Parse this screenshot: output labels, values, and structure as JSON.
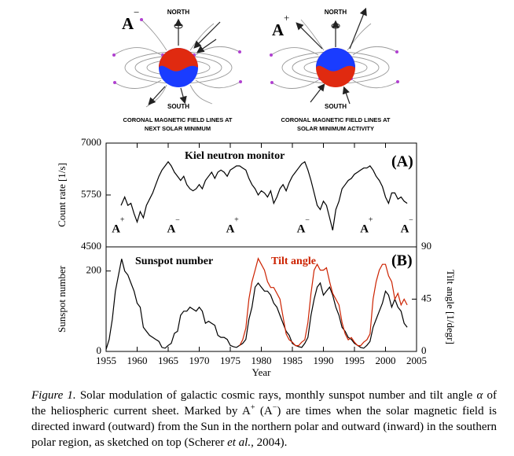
{
  "diagrams": [
    {
      "polarity": "A",
      "sign": "−",
      "north": "NORTH",
      "south": "SOUTH",
      "caption": [
        "CORONAL MAGNETIC FIELD LINES AT",
        "NEXT SOLAR MINIMUM"
      ]
    },
    {
      "polarity": "A",
      "sign": "+",
      "north": "NORTH",
      "south": "SOUTH",
      "caption": [
        "CORONAL MAGNETIC FIELD LINES AT",
        "SOLAR MINIMUM ACTIVITY"
      ]
    }
  ],
  "chart_data": [
    {
      "type": "line",
      "annotation": "Kiel neutron monitor",
      "panel_label": "(A)",
      "ylabel": "Count rate [1/s]",
      "xlim": [
        1955,
        2005
      ],
      "ylim": [
        4500,
        7000
      ],
      "yticks": [
        4500,
        5750,
        7000
      ],
      "series": [
        {
          "name": "Kiel neutron monitor",
          "color": "#000000",
          "x": [
            1957.4,
            1958,
            1958.5,
            1959,
            1959.5,
            1960,
            1960.5,
            1961,
            1961.5,
            1962,
            1962.5,
            1963,
            1963.5,
            1964,
            1964.5,
            1965,
            1965.5,
            1966,
            1966.5,
            1967,
            1967.5,
            1968,
            1968.5,
            1969,
            1969.5,
            1970,
            1970.5,
            1971,
            1971.5,
            1972,
            1972.5,
            1973,
            1973.5,
            1974,
            1974.5,
            1975,
            1975.5,
            1976,
            1976.5,
            1977,
            1977.5,
            1978,
            1978.5,
            1979,
            1979.5,
            1980,
            1980.5,
            1981,
            1981.5,
            1982,
            1982.5,
            1983,
            1983.5,
            1984,
            1984.5,
            1985,
            1985.5,
            1986,
            1986.5,
            1987,
            1987.5,
            1988,
            1988.5,
            1989,
            1989.5,
            1990,
            1990.5,
            1991,
            1991.5,
            1992,
            1992.5,
            1993,
            1993.5,
            1994,
            1994.5,
            1995,
            1995.5,
            1996,
            1996.5,
            1997,
            1997.5,
            1998,
            1998.5,
            1999,
            1999.5,
            2000,
            2000.5,
            2001,
            2001.5,
            2002,
            2002.5,
            2003,
            2003.5
          ],
          "values": [
            5500,
            5700,
            5500,
            5550,
            5300,
            5100,
            5350,
            5200,
            5500,
            5650,
            5800,
            6000,
            6200,
            6350,
            6450,
            6550,
            6450,
            6300,
            6200,
            6100,
            6200,
            6000,
            5900,
            5850,
            5900,
            6000,
            5900,
            6100,
            6200,
            6300,
            6150,
            6300,
            6350,
            6300,
            6200,
            6350,
            6400,
            6450,
            6450,
            6400,
            6350,
            6150,
            6000,
            5900,
            5750,
            5850,
            5800,
            5700,
            5850,
            5550,
            5700,
            5900,
            6000,
            5850,
            6050,
            6200,
            6300,
            6400,
            6500,
            6550,
            6350,
            6100,
            5800,
            5500,
            5400,
            5600,
            5500,
            5200,
            4900,
            5400,
            5600,
            5900,
            6000,
            6100,
            6150,
            6250,
            6300,
            6350,
            6400,
            6400,
            6450,
            6350,
            6200,
            6100,
            5950,
            5700,
            5550,
            5800,
            5800,
            5650,
            5700,
            5600,
            5550
          ]
        }
      ],
      "polarity_marks": [
        {
          "label": "A",
          "sign": "+",
          "x": 1956.6
        },
        {
          "label": "A",
          "sign": "−",
          "x": 1965.5
        },
        {
          "label": "A",
          "sign": "+",
          "x": 1975
        },
        {
          "label": "A",
          "sign": "−",
          "x": 1986.4
        },
        {
          "label": "A",
          "sign": "+",
          "x": 1996.6
        },
        {
          "label": "A",
          "sign": "−",
          "x": 2003.1
        }
      ]
    },
    {
      "type": "line",
      "panel_label": "(B)",
      "ylabel": "Sunspot number",
      "y2label": "Tilt angle [1/degr]",
      "xlabel": "Year",
      "xlim": [
        1955,
        2005
      ],
      "xticks": [
        1955,
        1960,
        1965,
        1970,
        1975,
        1980,
        1985,
        1990,
        1995,
        2000,
        2005
      ],
      "ylim": [
        0,
        260
      ],
      "yticks": [
        0,
        200
      ],
      "y2lim": [
        0,
        90
      ],
      "y2ticks": [
        0,
        45,
        90
      ],
      "series": [
        {
          "name": "Sunspot number",
          "color": "#000000",
          "x": [
            1955,
            1955.5,
            1956,
            1956.5,
            1957,
            1957.5,
            1958,
            1958.5,
            1959,
            1959.5,
            1960,
            1960.5,
            1961,
            1961.5,
            1962,
            1962.5,
            1963,
            1963.5,
            1964,
            1964.5,
            1965,
            1965.5,
            1966,
            1966.5,
            1967,
            1967.5,
            1968,
            1968.5,
            1969,
            1969.5,
            1970,
            1970.5,
            1971,
            1971.5,
            1972,
            1972.5,
            1973,
            1973.5,
            1974,
            1974.5,
            1975,
            1975.5,
            1976,
            1976.5,
            1977,
            1977.5,
            1978,
            1978.5,
            1979,
            1979.5,
            1980,
            1980.5,
            1981,
            1981.5,
            1982,
            1982.5,
            1983,
            1983.5,
            1984,
            1984.5,
            1985,
            1985.5,
            1986,
            1986.5,
            1987,
            1987.5,
            1988,
            1988.5,
            1989,
            1989.5,
            1990,
            1990.5,
            1991,
            1991.5,
            1992,
            1992.5,
            1993,
            1993.5,
            1994,
            1994.5,
            1995,
            1995.5,
            1996,
            1996.5,
            1997,
            1997.5,
            1998,
            1998.5,
            1999,
            1999.5,
            2000,
            2000.5,
            2001,
            2001.5,
            2002,
            2002.5,
            2003,
            2003.5
          ],
          "values": [
            5,
            30,
            80,
            150,
            190,
            230,
            200,
            190,
            170,
            150,
            120,
            110,
            60,
            50,
            40,
            35,
            30,
            25,
            10,
            8,
            15,
            20,
            45,
            50,
            90,
            100,
            100,
            110,
            105,
            100,
            110,
            100,
            70,
            75,
            70,
            65,
            40,
            35,
            35,
            30,
            15,
            12,
            10,
            15,
            20,
            30,
            80,
            110,
            160,
            170,
            160,
            150,
            150,
            140,
            120,
            110,
            90,
            70,
            50,
            40,
            20,
            15,
            12,
            10,
            20,
            35,
            90,
            130,
            160,
            170,
            140,
            150,
            160,
            140,
            110,
            90,
            60,
            50,
            35,
            30,
            20,
            15,
            10,
            8,
            15,
            25,
            60,
            80,
            100,
            120,
            150,
            140,
            110,
            130,
            110,
            100,
            70,
            60
          ]
        },
        {
          "name": "Tilt angle",
          "color": "#cc2200",
          "axis": "y2",
          "x": [
            1976.5,
            1977,
            1977.5,
            1978,
            1978.5,
            1979,
            1979.5,
            1980,
            1980.5,
            1981,
            1981.5,
            1982,
            1982.5,
            1983,
            1983.5,
            1984,
            1984.5,
            1985,
            1985.5,
            1986,
            1986.5,
            1987,
            1987.5,
            1988,
            1988.5,
            1989,
            1989.5,
            1990,
            1990.5,
            1991,
            1991.5,
            1992,
            1992.5,
            1993,
            1993.5,
            1994,
            1994.5,
            1995,
            1995.5,
            1996,
            1996.5,
            1997,
            1997.5,
            1998,
            1998.5,
            1999,
            1999.5,
            2000,
            2000.5,
            2001,
            2001.5,
            2002,
            2002.5,
            2003,
            2003.5
          ],
          "values": [
            5,
            10,
            20,
            45,
            60,
            70,
            80,
            75,
            70,
            60,
            55,
            55,
            50,
            45,
            30,
            15,
            10,
            8,
            5,
            5,
            8,
            10,
            25,
            50,
            70,
            75,
            70,
            70,
            72,
            60,
            50,
            45,
            40,
            25,
            15,
            10,
            12,
            8,
            5,
            5,
            8,
            10,
            15,
            45,
            60,
            70,
            75,
            75,
            65,
            60,
            45,
            50,
            40,
            45,
            40
          ]
        }
      ]
    }
  ],
  "caption": {
    "label": "Figure 1.",
    "parts": [
      " Solar modulation of galactic cosmic rays, monthly sunspot number and tilt angle ",
      "α",
      " of the heliospheric current sheet. Marked by A",
      "+",
      " (A",
      "−",
      ") are times when the solar magnetic field is directed inward (outward) from the Sun in the northern polar and outward (inward) in the southern polar region, as sketched on top (Scherer ",
      "et al.",
      ", 2004)."
    ]
  }
}
